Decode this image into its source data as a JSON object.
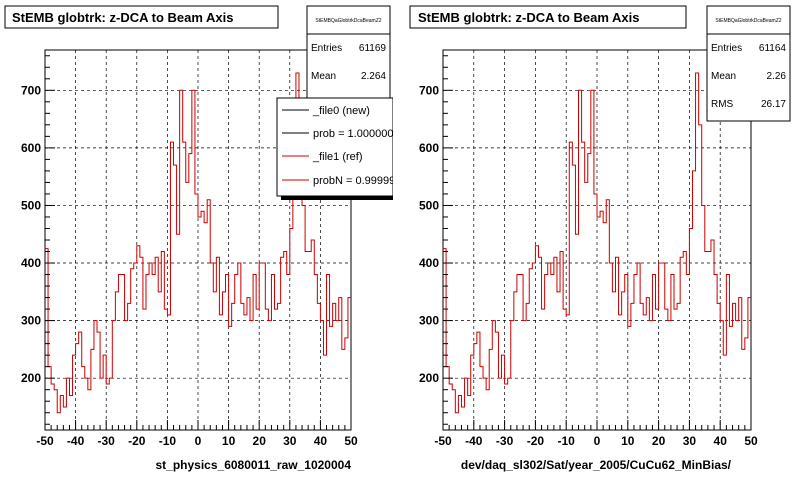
{
  "footer_note": "",
  "chart_data": [
    {
      "type": "line",
      "title": "StEMB globtrk: z-DCA to Beam Axis",
      "xlabel": "st_physics_6080011_raw_1020004",
      "ylabel": "",
      "xlim": [
        -50,
        50
      ],
      "ylim": [
        110,
        770
      ],
      "x_ticks": [
        -50,
        -40,
        -30,
        -20,
        -10,
        0,
        10,
        20,
        30,
        40,
        50
      ],
      "y_ticks": [
        200,
        300,
        400,
        500,
        600,
        700
      ],
      "grid": true,
      "bin_edges_start": -50,
      "bin_width": 1,
      "stats": {
        "name": "StEMBQaGlobtrkDcaBeamZ2",
        "entries_label": "Entries",
        "entries": "61169",
        "mean_label": "Mean",
        "mean": "2.264"
      },
      "legend": {
        "placement": "top-right",
        "entries": [
          {
            "label": "_file0 (new)",
            "color": "#000000"
          },
          {
            "label": "prob = 1.000000",
            "color": "#000000"
          },
          {
            "label": "_file1 (ref)",
            "color": "#cc0000"
          },
          {
            "label": "probN = 0.999999",
            "color": "#cc0000"
          }
        ]
      },
      "series": [
        {
          "name": "_file1 (ref)",
          "color": "#cc0000",
          "values": [
            425,
            220,
            190,
            180,
            140,
            170,
            150,
            200,
            170,
            240,
            260,
            280,
            220,
            200,
            180,
            250,
            300,
            280,
            200,
            240,
            190,
            200,
            300,
            350,
            380,
            380,
            300,
            330,
            390,
            400,
            430,
            410,
            320,
            380,
            400,
            380,
            410,
            350,
            420,
            320,
            310,
            610,
            570,
            450,
            700,
            610,
            540,
            590,
            700,
            520,
            480,
            490,
            470,
            510,
            400,
            350,
            410,
            310,
            350,
            380,
            290,
            330,
            380,
            400,
            330,
            310,
            340,
            300,
            380,
            320,
            400,
            400,
            320,
            300,
            380,
            320,
            330,
            410,
            420,
            380,
            460,
            560,
            730,
            640,
            500,
            420,
            420,
            440,
            380,
            330,
            300,
            240,
            380,
            290,
            330,
            300,
            340,
            250,
            270,
            340
          ]
        }
      ]
    },
    {
      "type": "line",
      "title": "StEMB globtrk: z-DCA to Beam Axis",
      "xlabel": "dev/daq_sl302/Sat/year_2005/CuCu62_MinBias/",
      "ylabel": "",
      "xlim": [
        -50,
        50
      ],
      "ylim": [
        110,
        770
      ],
      "x_ticks": [
        -50,
        -40,
        -30,
        -20,
        -10,
        0,
        10,
        20,
        30,
        40,
        50
      ],
      "y_ticks": [
        200,
        300,
        400,
        500,
        600,
        700
      ],
      "grid": true,
      "bin_edges_start": -50,
      "bin_width": 1,
      "stats": {
        "name": "StEMBQaGlobtrkDcaBeamZ2",
        "entries_label": "Entries",
        "entries": "61164",
        "mean_label": "Mean",
        "mean": "2.26",
        "rms_label": "RMS",
        "rms": "26.17"
      },
      "series": [
        {
          "name": "",
          "color": "#cc0000",
          "values": [
            425,
            220,
            190,
            180,
            140,
            170,
            150,
            200,
            170,
            240,
            260,
            280,
            220,
            200,
            180,
            250,
            300,
            280,
            200,
            240,
            190,
            200,
            300,
            350,
            380,
            380,
            300,
            330,
            390,
            400,
            430,
            410,
            320,
            380,
            400,
            380,
            410,
            350,
            420,
            320,
            310,
            610,
            570,
            450,
            700,
            610,
            540,
            590,
            700,
            520,
            480,
            490,
            470,
            510,
            400,
            350,
            410,
            310,
            350,
            380,
            290,
            330,
            380,
            400,
            330,
            310,
            340,
            300,
            380,
            320,
            400,
            400,
            320,
            300,
            380,
            320,
            330,
            410,
            420,
            380,
            460,
            560,
            730,
            640,
            500,
            420,
            420,
            440,
            380,
            330,
            300,
            240,
            380,
            290,
            330,
            300,
            340,
            250,
            270,
            340
          ]
        }
      ]
    }
  ]
}
